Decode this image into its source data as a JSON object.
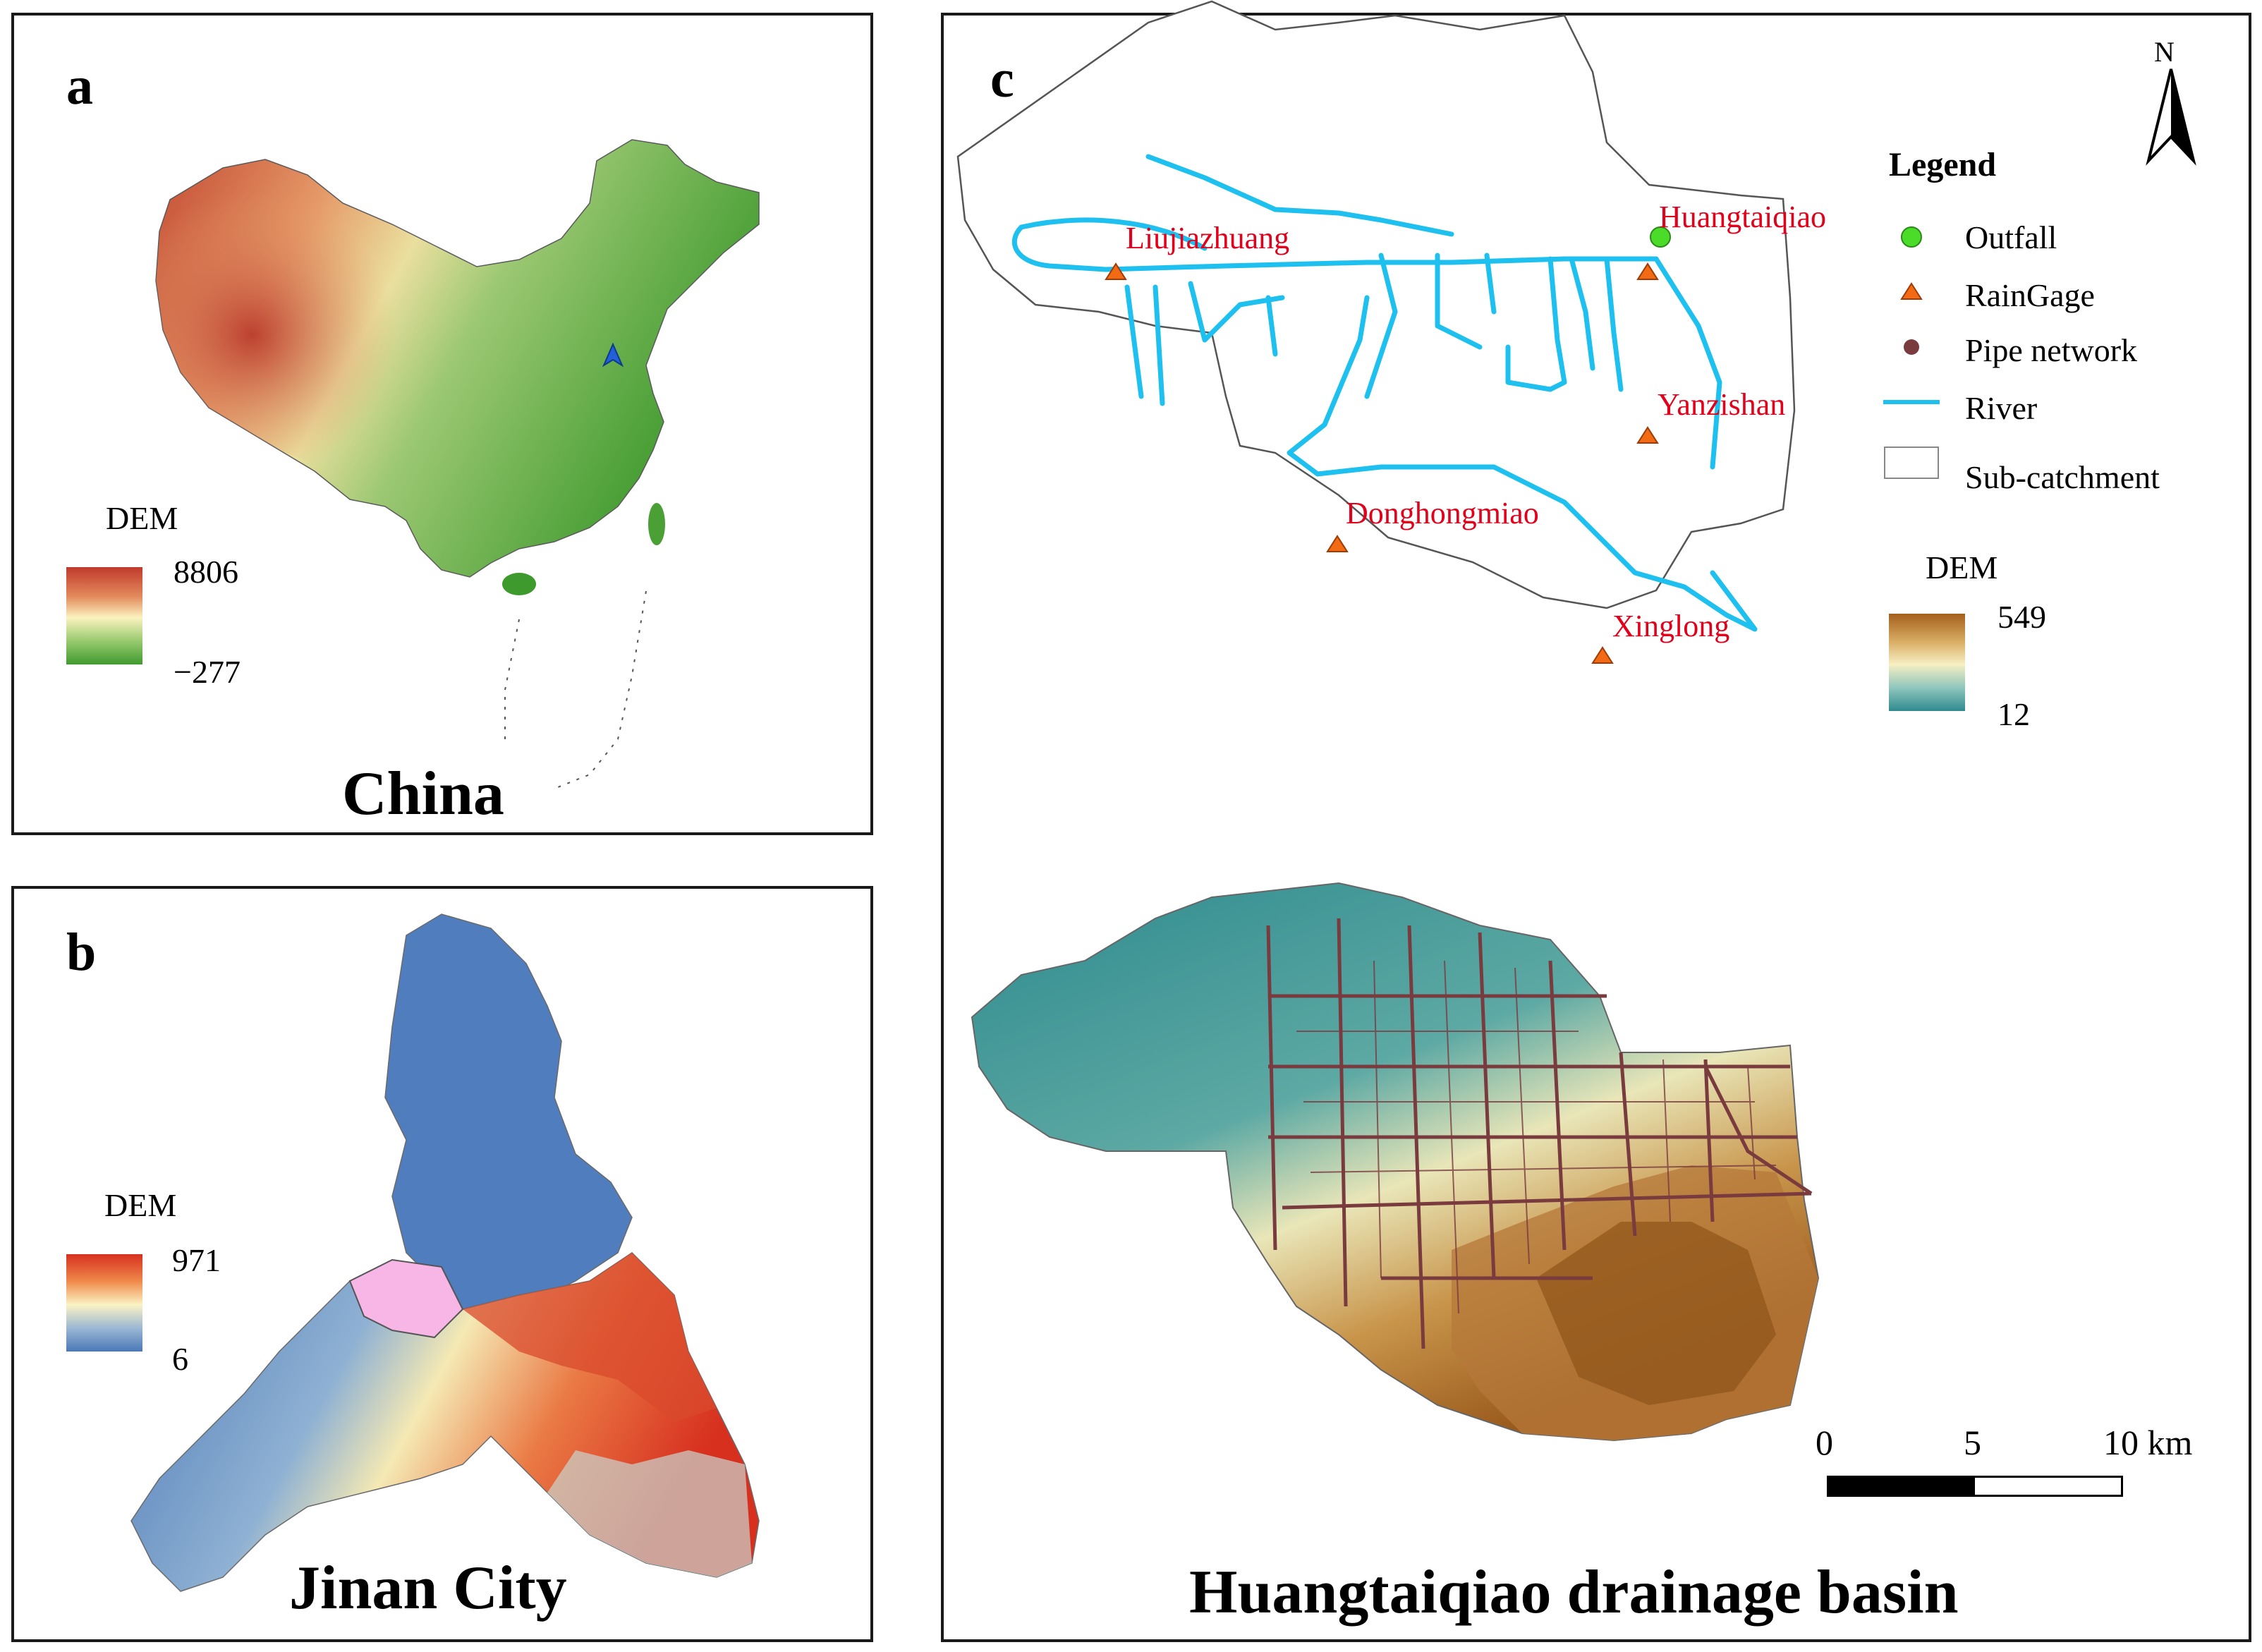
{
  "panel_a": {
    "letter": "a",
    "title": "China",
    "legend": {
      "title": "DEM",
      "max": "8806",
      "min": "−277"
    }
  },
  "panel_b": {
    "letter": "b",
    "title": "Jinan City",
    "legend": {
      "title": "DEM",
      "max": "971",
      "min": "6"
    }
  },
  "panel_c": {
    "letter": "c",
    "title": "Huangtaiqiao drainage basin",
    "north_label": "N",
    "stations": {
      "huangtaiqiao": "Huangtaiqiao",
      "liujiazhuang": "Liujiazhuang",
      "yanzishan": "Yanzishan",
      "donghongmiao": "Donghongmiao",
      "xinglong": "Xinglong"
    },
    "legend": {
      "title": "Legend",
      "outfall": "Outfall",
      "raingage": "RainGage",
      "pipe_network": "Pipe network",
      "river": "River",
      "sub_catchment": "Sub-catchment"
    },
    "dem_legend": {
      "title": "DEM",
      "max": "549",
      "min": "12"
    },
    "scale_bar": {
      "zero": "0",
      "mid": "5",
      "end": "10 km"
    },
    "colors": {
      "river": "#1ec0ef",
      "outfall": "#4bdc2a",
      "raingage": "#f26a14",
      "pipe": "#7a3b3f",
      "label": "#e3001b"
    }
  }
}
